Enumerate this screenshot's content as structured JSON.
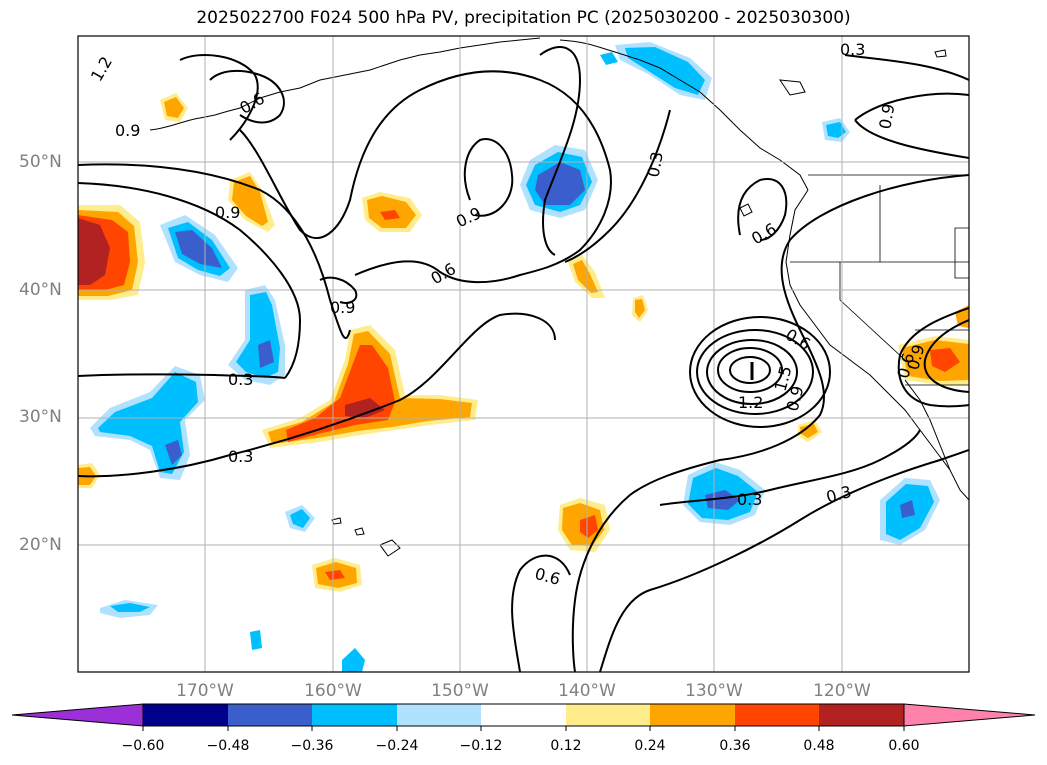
{
  "title": "2025022700 F024 500 hPa PV, precipitation PC (2025030200 - 2025030300)",
  "lat_labels": [
    "50°N",
    "40°N",
    "30°N",
    "20°N"
  ],
  "lon_labels": [
    "170°W",
    "160°W",
    "150°W",
    "140°W",
    "130°W",
    "120°W"
  ],
  "colorbar": {
    "ticks": [
      "−0.60",
      "−0.48",
      "−0.36",
      "−0.24",
      "−0.12",
      "0.12",
      "0.24",
      "0.36",
      "0.48",
      "0.60"
    ],
    "colors": [
      "#9b30d8",
      "#00008b",
      "#3a5fcd",
      "#00bfff",
      "#b0e2ff",
      "#ffffff",
      "#ffec8b",
      "#ffa500",
      "#ff4500",
      "#b22222",
      "#ff82ab"
    ]
  },
  "contour_labels": [
    "1.2",
    "0.9",
    "0.6",
    "0.9",
    "0.9",
    "0.9",
    "0.6",
    "0.9",
    "0.3",
    "0.3",
    "0.3",
    "0.6",
    "0.6",
    "0.6",
    "1.2",
    "1.5",
    "0.9",
    "0.3",
    "0.3",
    "0.6",
    "0.3",
    "0.9",
    "0.6",
    "0.9"
  ]
}
